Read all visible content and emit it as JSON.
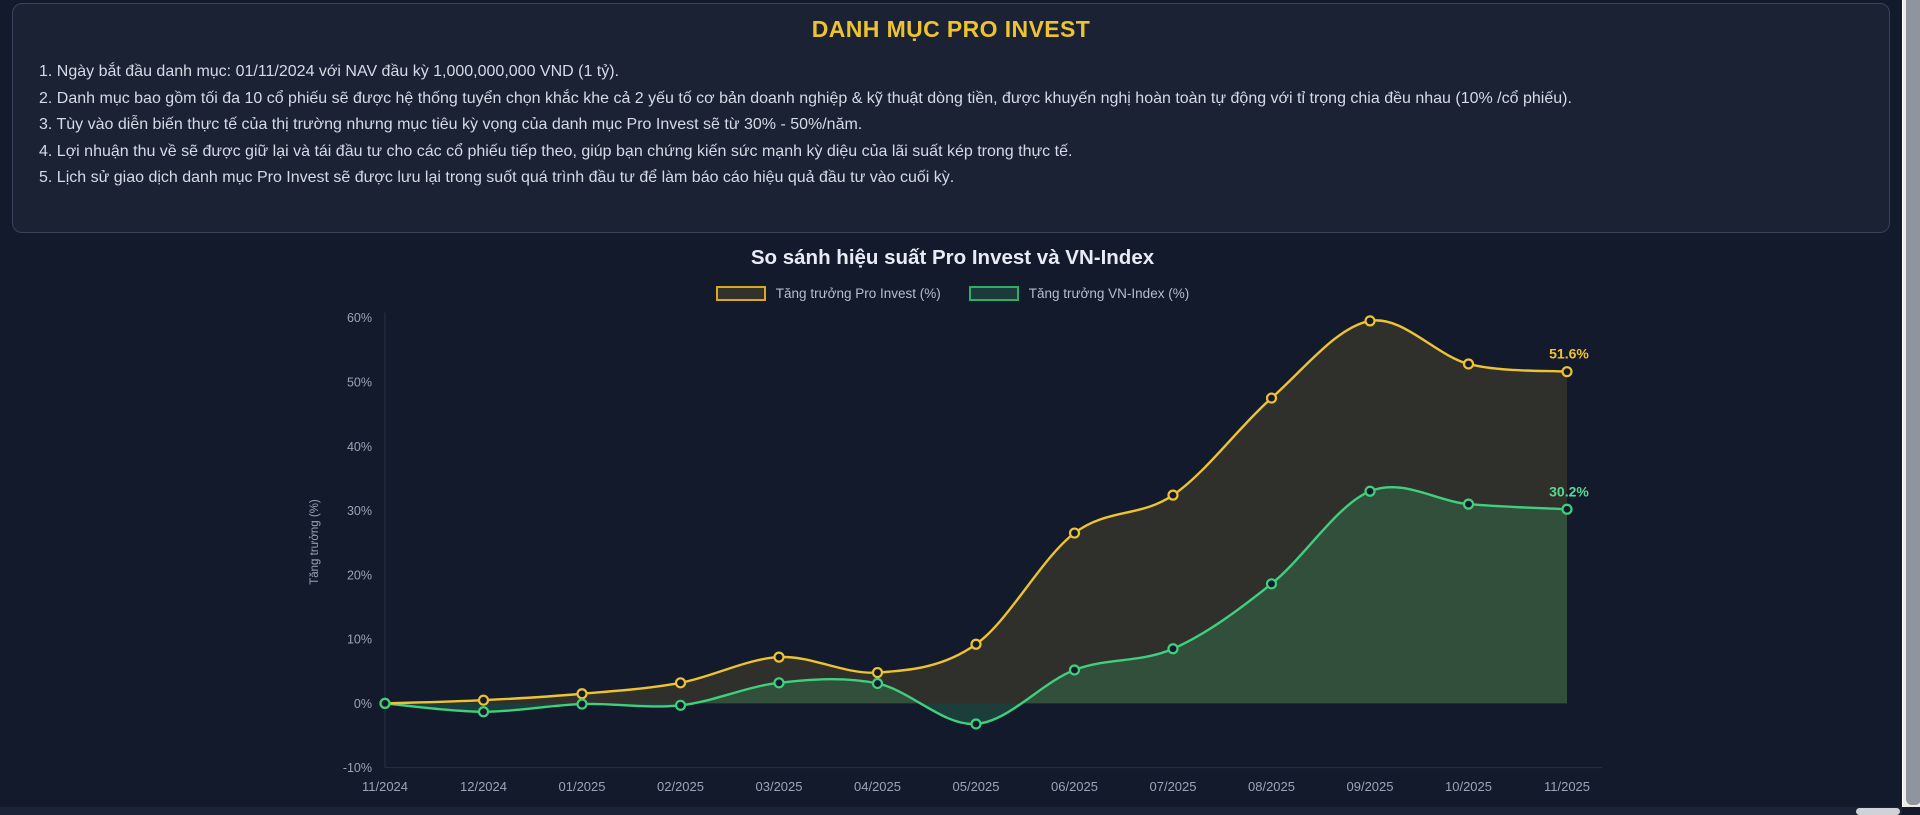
{
  "panel": {
    "title": "DANH MỤC PRO INVEST",
    "notes": [
      "1. Ngày bắt đầu danh mục: 01/11/2024 với NAV đầu kỳ 1,000,000,000 VND (1 tỷ).",
      "2. Danh mục bao gồm tối đa 10 cổ phiếu sẽ được hệ thống tuyển chọn khắc khe cả 2 yếu tố cơ bản doanh nghiệp & kỹ thuật dòng tiền, được khuyến nghị hoàn toàn tự động với tỉ trọng chia đều nhau (10% /cổ phiếu).",
      "3. Tùy vào diễn biến thực tế của thị trường nhưng mục tiêu kỳ vọng của danh mục Pro Invest sẽ từ 30% - 50%/năm.",
      "4. Lợi nhuận thu về sẽ được giữ lại và tái đầu tư cho các cổ phiếu tiếp theo, giúp bạn chứng kiến sức mạnh kỳ diệu của lãi suất kép trong thực tế.",
      "5. Lịch sử giao dịch danh mục Pro Invest sẽ được lưu lại trong suốt quá trình đầu tư để làm báo cáo hiệu quả đầu tư vào cuối kỳ."
    ]
  },
  "chart_data": {
    "type": "line",
    "title": "So sánh hiệu suất Pro Invest và VN-Index",
    "ylabel": "Tăng trưởng (%)",
    "categories": [
      "11/2024",
      "12/2024",
      "01/2025",
      "02/2025",
      "03/2025",
      "04/2025",
      "05/2025",
      "06/2025",
      "07/2025",
      "08/2025",
      "09/2025",
      "10/2025",
      "11/2025"
    ],
    "series": [
      {
        "name": "Tăng trưởng Pro Invest (%)",
        "color": "#eec331",
        "fill": "rgba(238,195,49,0.13)",
        "end_label": "51.6%",
        "end_label_color": "#eec331",
        "values": [
          0,
          0.5,
          1.5,
          3.2,
          7.2,
          4.8,
          9.2,
          26.5,
          32.4,
          47.5,
          59.5,
          52.8,
          51.6
        ]
      },
      {
        "name": "Tăng trưởng VN-Index (%)",
        "color": "#3fd07d",
        "fill": "rgba(63,208,125,0.20)",
        "end_label": "30.2%",
        "end_label_color": "#57da8f",
        "values": [
          0,
          -1.3,
          -0.1,
          -0.3,
          3.2,
          3.1,
          -3.2,
          5.2,
          8.5,
          18.6,
          33.0,
          31.0,
          30.2
        ]
      }
    ],
    "ylim": [
      -10,
      60
    ],
    "yticks": [
      60,
      50,
      40,
      30,
      20,
      10,
      0,
      -10
    ],
    "legend_position": "top",
    "grid": false,
    "colors": {
      "axis_line": "#273044",
      "tick_text": "#9aa4b6",
      "point_fill": "#131a2b"
    }
  }
}
